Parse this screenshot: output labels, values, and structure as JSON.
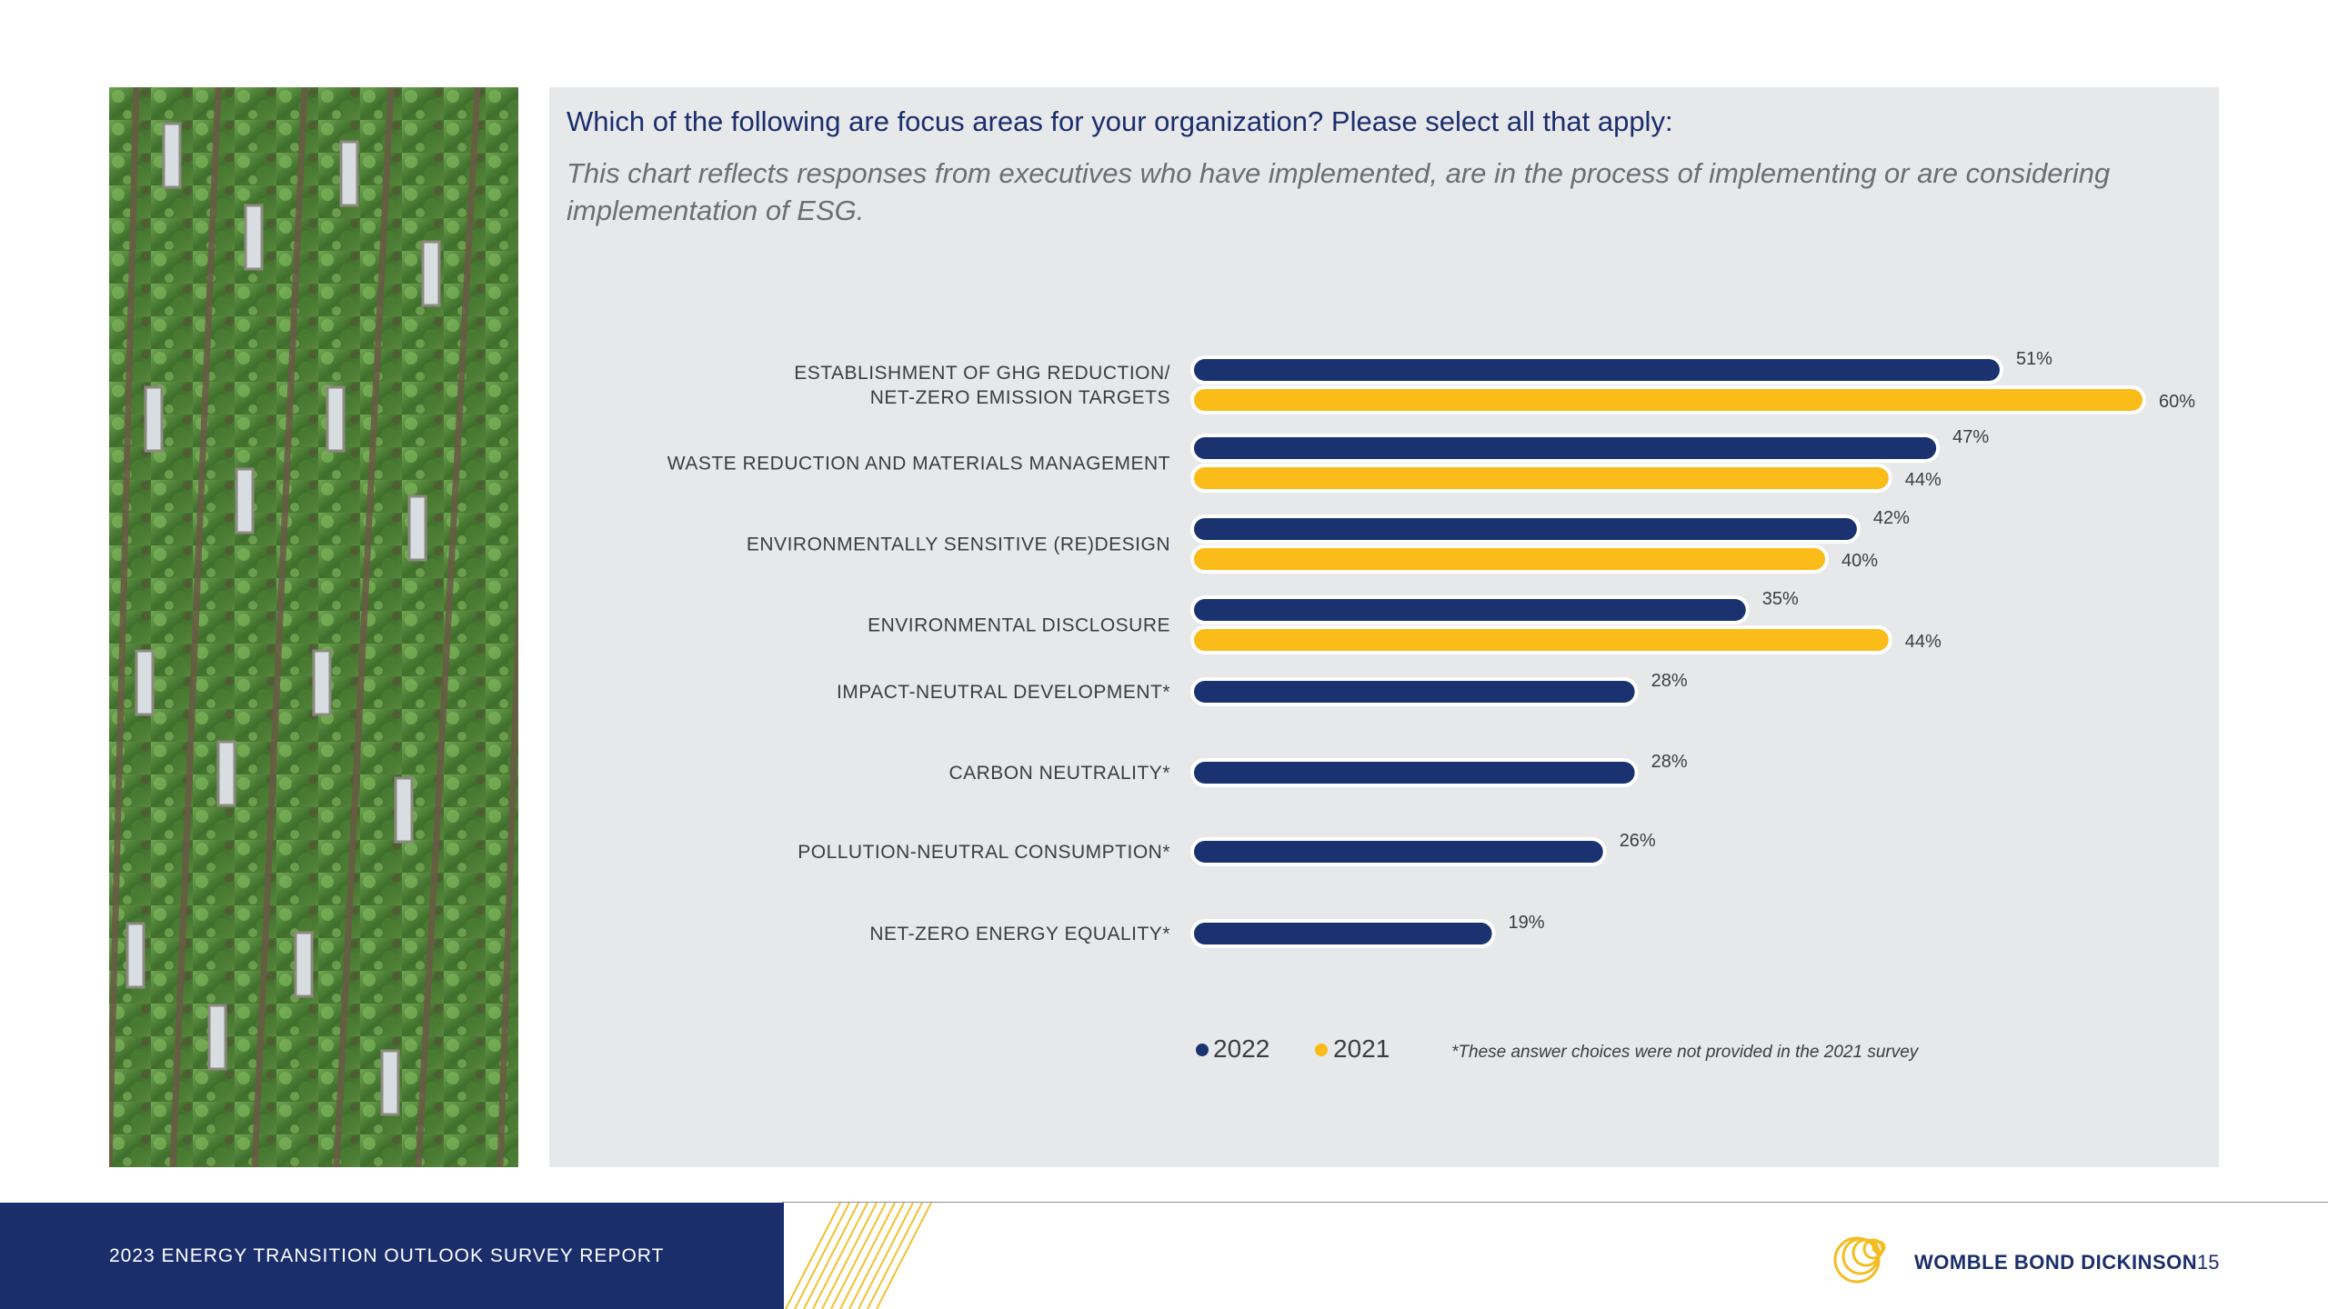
{
  "page": {
    "question": "Which of the following are focus areas for your organization? Please select all that apply:",
    "subtitle": "This chart reflects responses from executives who have implemented, are in the process of implementing or are considering implementation of ESG."
  },
  "colors": {
    "series_2022": "#1a3370",
    "series_2021": "#fbbb18",
    "panel": "#e7e8ea",
    "footer": "#1a2e6c"
  },
  "chart_data": {
    "type": "bar",
    "orientation": "horizontal",
    "title": "Which of the following are focus areas for your organization? Please select all that apply:",
    "categories": [
      [
        "ESTABLISHMENT OF GHG REDUCTION/",
        "NET-ZERO EMISSION TARGETS"
      ],
      [
        "WASTE REDUCTION AND MATERIALS MANAGEMENT"
      ],
      [
        "ENVIRONMENTALLY SENSITIVE (RE)DESIGN"
      ],
      [
        "ENVIRONMENTAL DISCLOSURE"
      ],
      [
        "IMPACT-NEUTRAL DEVELOPMENT*"
      ],
      [
        "CARBON NEUTRALITY*"
      ],
      [
        "POLLUTION-NEUTRAL CONSUMPTION*"
      ],
      [
        "NET-ZERO ENERGY EQUALITY*"
      ]
    ],
    "series": [
      {
        "name": "2022",
        "values": [
          51,
          47,
          42,
          35,
          28,
          28,
          26,
          19
        ],
        "labels": [
          "51%",
          "47%",
          "42%",
          "35%",
          "28%",
          "28%",
          "26%",
          "19%"
        ]
      },
      {
        "name": "2021",
        "values": [
          60,
          44,
          40,
          44,
          null,
          null,
          null,
          null
        ],
        "labels": [
          "60%",
          "44%",
          "40%",
          "44%",
          "",
          "",
          "",
          ""
        ]
      }
    ],
    "xlim": [
      0,
      60
    ],
    "legend": [
      "2022",
      "2021"
    ],
    "legend_position": "bottom",
    "footnote": "*These answer choices were not provided in the 2021 survey"
  },
  "footer": {
    "report_title": "2023 ENERGY TRANSITION OUTLOOK SURVEY REPORT",
    "brand": "WOMBLE BOND DICKINSON",
    "page_number": "15",
    "photo_icon": "green-wall-building-photo",
    "logo_icon": "wbd-circles-logo"
  }
}
